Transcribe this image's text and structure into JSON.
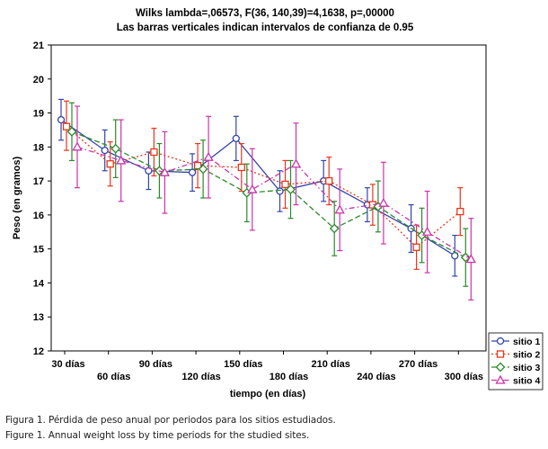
{
  "chart_data": {
    "type": "line",
    "title": "Wilks lambda=,06573, F(36, 140,39)=4,1638, p=,00000",
    "subtitle": "Las barras verticales indican intervalos de confianza de 0.95",
    "xlabel": "tiempo (en días)",
    "ylabel": "Peso (en gramos)",
    "categories": [
      "30 días",
      "60 días",
      "90 días",
      "120 días",
      "150 días",
      "180 días",
      "210 días",
      "240 días",
      "270 días",
      "300 días"
    ],
    "ylim": [
      12,
      21
    ],
    "yticks": [
      "12",
      "13",
      "14",
      "15",
      "16",
      "17",
      "18",
      "19",
      "20",
      "21"
    ],
    "grid": false,
    "legend_position": "bottom-right",
    "series": [
      {
        "name": "sitio 1",
        "color": "#3344aa",
        "dash": "solid",
        "marker": "circle",
        "values": [
          18.8,
          17.9,
          17.3,
          17.25,
          18.25,
          16.7,
          17.0,
          16.3,
          15.6,
          14.8
        ],
        "lower": [
          18.2,
          17.3,
          16.75,
          16.7,
          17.6,
          16.1,
          16.4,
          15.8,
          14.9,
          14.2
        ],
        "upper": [
          19.4,
          18.5,
          17.85,
          17.8,
          18.9,
          17.3,
          17.6,
          16.8,
          16.3,
          15.4
        ]
      },
      {
        "name": "sitio 2",
        "color": "#e8361b",
        "dash": "dot",
        "marker": "square",
        "values": [
          18.6,
          17.5,
          17.85,
          17.45,
          17.4,
          16.9,
          17.0,
          16.3,
          15.05,
          16.1
        ],
        "lower": [
          17.9,
          16.85,
          17.15,
          16.8,
          16.7,
          16.2,
          16.3,
          15.7,
          14.4,
          15.4
        ],
        "upper": [
          19.35,
          18.15,
          18.55,
          18.1,
          18.1,
          17.6,
          17.7,
          16.9,
          15.7,
          16.8
        ]
      },
      {
        "name": "sitio 3",
        "color": "#2a8a2a",
        "dash": "dash",
        "marker": "diamond",
        "values": [
          18.45,
          17.95,
          17.3,
          17.35,
          16.65,
          16.75,
          15.6,
          16.25,
          15.4,
          14.75
        ],
        "lower": [
          17.6,
          17.1,
          16.5,
          16.5,
          15.8,
          15.9,
          14.8,
          15.5,
          14.6,
          13.9
        ],
        "upper": [
          19.3,
          18.8,
          18.1,
          18.2,
          17.5,
          17.6,
          16.4,
          17.0,
          16.2,
          15.6
        ]
      },
      {
        "name": "sitio 4",
        "color": "#cc33aa",
        "dash": "dashdot",
        "marker": "triangle",
        "values": [
          18.0,
          17.6,
          17.25,
          17.7,
          16.75,
          17.5,
          16.15,
          16.35,
          15.5,
          14.7
        ],
        "lower": [
          16.8,
          16.4,
          16.05,
          16.5,
          15.55,
          16.3,
          14.95,
          15.15,
          14.3,
          13.5
        ],
        "upper": [
          19.2,
          18.8,
          18.45,
          18.9,
          17.95,
          18.7,
          17.35,
          17.55,
          16.7,
          15.9
        ]
      }
    ]
  },
  "captions": {
    "es": "Figura 1. Pérdida de peso anual por periodos para los sitios estudiados.",
    "en": "Figure 1. Annual weight loss by time periods for the studied sites."
  }
}
